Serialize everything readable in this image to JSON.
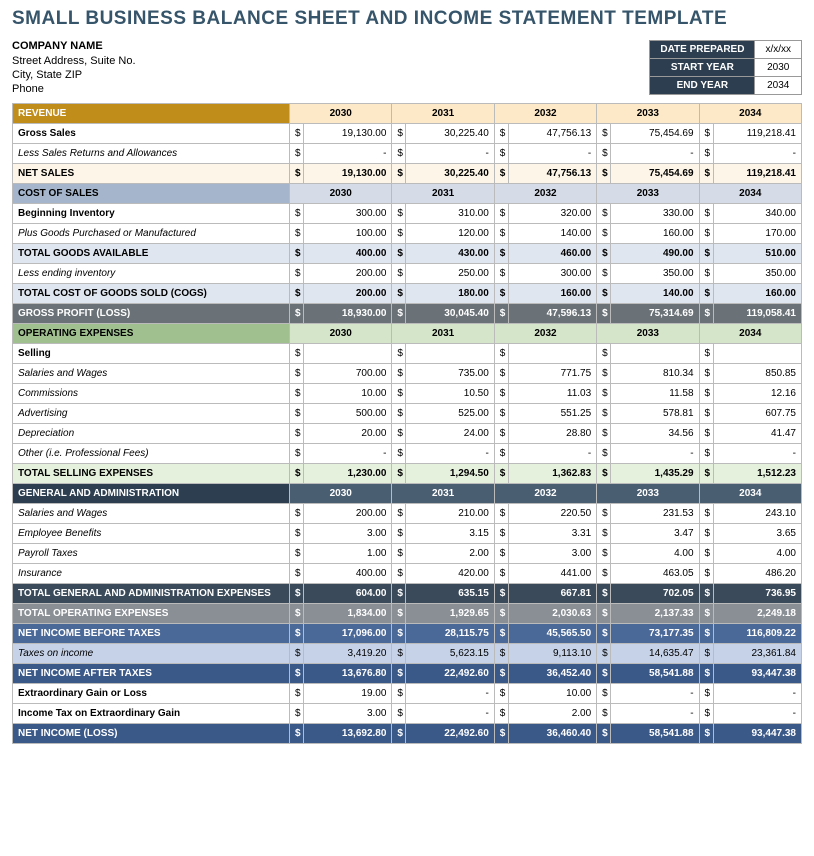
{
  "title": "SMALL BUSINESS BALANCE SHEET AND INCOME STATEMENT TEMPLATE",
  "company": {
    "name": "COMPANY NAME",
    "addr1": "Street Address, Suite No.",
    "addr2": "City, State ZIP",
    "phone": "Phone"
  },
  "meta": {
    "date_label": "DATE PREPARED",
    "date_val": "x/x/xx",
    "start_label": "START YEAR",
    "start_val": "2030",
    "end_label": "END YEAR",
    "end_val": "2034"
  },
  "years": [
    "2030",
    "2031",
    "2032",
    "2033",
    "2034"
  ],
  "sec": {
    "revenue": "REVENUE",
    "gross_sales": "Gross Sales",
    "less_returns": "Less Sales Returns and Allowances",
    "net_sales": "NET SALES",
    "cost_of_sales": "COST OF SALES",
    "beg_inv": "Beginning Inventory",
    "plus_goods": "Plus Goods Purchased or Manufactured",
    "total_goods": "TOTAL GOODS AVAILABLE",
    "less_end": "Less ending inventory",
    "cogs": "TOTAL COST OF GOODS SOLD (COGS)",
    "gross_profit": "GROSS PROFIT (LOSS)",
    "op_exp": "OPERATING EXPENSES",
    "selling": "Selling",
    "sal_wages": "Salaries and Wages",
    "commissions": "Commissions",
    "advertising": "Advertising",
    "depreciation": "Depreciation",
    "other": "Other (i.e. Professional Fees)",
    "tot_selling": "TOTAL SELLING EXPENSES",
    "gen_admin": "GENERAL AND ADMINISTRATION",
    "emp_benefits": "Employee Benefits",
    "payroll_tax": "Payroll Taxes",
    "insurance": "Insurance",
    "tot_ga": "TOTAL GENERAL AND ADMINISTRATION EXPENSES",
    "tot_op_exp": "TOTAL OPERATING EXPENSES",
    "net_before": "NET INCOME BEFORE TAXES",
    "tax_income": "Taxes on income",
    "net_after": "NET INCOME AFTER TAXES",
    "extra_gain": "Extraordinary Gain or Loss",
    "extra_tax": "Income Tax on Extraordinary Gain",
    "net_income": "NET INCOME (LOSS)"
  },
  "v": {
    "gross_sales": [
      "19,130.00",
      "30,225.40",
      "47,756.13",
      "75,454.69",
      "119,218.41"
    ],
    "less_returns": [
      "-",
      "-",
      "-",
      "-",
      "-"
    ],
    "net_sales": [
      "19,130.00",
      "30,225.40",
      "47,756.13",
      "75,454.69",
      "119,218.41"
    ],
    "beg_inv": [
      "300.00",
      "310.00",
      "320.00",
      "330.00",
      "340.00"
    ],
    "plus_goods": [
      "100.00",
      "120.00",
      "140.00",
      "160.00",
      "170.00"
    ],
    "total_goods": [
      "400.00",
      "430.00",
      "460.00",
      "490.00",
      "510.00"
    ],
    "less_end": [
      "200.00",
      "250.00",
      "300.00",
      "350.00",
      "350.00"
    ],
    "cogs": [
      "200.00",
      "180.00",
      "160.00",
      "140.00",
      "160.00"
    ],
    "gross_profit": [
      "18,930.00",
      "30,045.40",
      "47,596.13",
      "75,314.69",
      "119,058.41"
    ],
    "sal_wages": [
      "700.00",
      "735.00",
      "771.75",
      "810.34",
      "850.85"
    ],
    "commissions": [
      "10.00",
      "10.50",
      "11.03",
      "11.58",
      "12.16"
    ],
    "advertising": [
      "500.00",
      "525.00",
      "551.25",
      "578.81",
      "607.75"
    ],
    "depreciation": [
      "20.00",
      "24.00",
      "28.80",
      "34.56",
      "41.47"
    ],
    "other": [
      "-",
      "-",
      "-",
      "-",
      "-"
    ],
    "tot_selling": [
      "1,230.00",
      "1,294.50",
      "1,362.83",
      "1,435.29",
      "1,512.23"
    ],
    "ga_sal": [
      "200.00",
      "210.00",
      "220.50",
      "231.53",
      "243.10"
    ],
    "emp_benefits": [
      "3.00",
      "3.15",
      "3.31",
      "3.47",
      "3.65"
    ],
    "payroll_tax": [
      "1.00",
      "2.00",
      "3.00",
      "4.00",
      "4.00"
    ],
    "insurance": [
      "400.00",
      "420.00",
      "441.00",
      "463.05",
      "486.20"
    ],
    "tot_ga": [
      "604.00",
      "635.15",
      "667.81",
      "702.05",
      "736.95"
    ],
    "tot_op_exp": [
      "1,834.00",
      "1,929.65",
      "2,030.63",
      "2,137.33",
      "2,249.18"
    ],
    "net_before": [
      "17,096.00",
      "28,115.75",
      "45,565.50",
      "73,177.35",
      "116,809.22"
    ],
    "tax_income": [
      "3,419.20",
      "5,623.15",
      "9,113.10",
      "14,635.47",
      "23,361.84"
    ],
    "net_after": [
      "13,676.80",
      "22,492.60",
      "36,452.40",
      "58,541.88",
      "93,447.38"
    ],
    "extra_gain": [
      "19.00",
      "-",
      "10.00",
      "-",
      "-"
    ],
    "extra_tax": [
      "3.00",
      "-",
      "2.00",
      "-",
      "-"
    ],
    "net_income": [
      "13,692.80",
      "22,492.60",
      "36,460.40",
      "58,541.88",
      "93,447.38"
    ]
  }
}
